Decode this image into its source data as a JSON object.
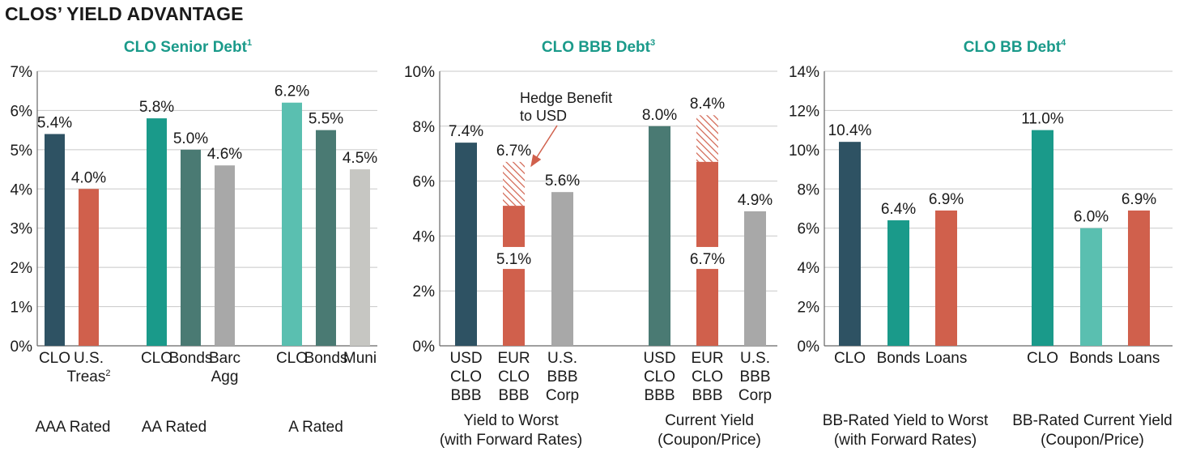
{
  "title": "CLOS’ YIELD ADVANTAGE",
  "colors": {
    "navy": "#2e5263",
    "teal": "#1a9a8a",
    "dark_teal": "#4a7a73",
    "light_teal": "#5abfb0",
    "gray": "#a8a8a8",
    "light_gray": "#c6c6c2",
    "red": "#d0604c",
    "grid": "#c8c8c8",
    "axis": "#666666"
  },
  "chart_data": [
    {
      "type": "bar",
      "title": "CLO Senior Debt",
      "title_sup": "1",
      "y_ticks": [
        "0%",
        "1%",
        "2%",
        "3%",
        "4%",
        "5%",
        "6%",
        "7%"
      ],
      "ylim": [
        0,
        7
      ],
      "bars": [
        {
          "name": "CLO",
          "lines": [
            "CLO"
          ],
          "value": 5.4,
          "label": "5.4%",
          "color": "navy"
        },
        {
          "name": "U.S. Treas",
          "lines": [
            "U.S.",
            "Treas"
          ],
          "sup": "2",
          "value": 4.0,
          "label": "4.0%",
          "color": "red"
        },
        {
          "name": "CLO",
          "lines": [
            "CLO"
          ],
          "value": 5.8,
          "label": "5.8%",
          "color": "teal"
        },
        {
          "name": "Bonds",
          "lines": [
            "Bonds"
          ],
          "value": 5.0,
          "label": "5.0%",
          "color": "dark_teal"
        },
        {
          "name": "Barc Agg",
          "lines": [
            "Barc",
            "Agg"
          ],
          "value": 4.6,
          "label": "4.6%",
          "color": "gray"
        },
        {
          "name": "CLO",
          "lines": [
            "CLO"
          ],
          "value": 6.2,
          "label": "6.2%",
          "color": "light_teal"
        },
        {
          "name": "Bonds",
          "lines": [
            "Bonds"
          ],
          "value": 5.5,
          "label": "5.5%",
          "color": "dark_teal"
        },
        {
          "name": "Muni",
          "lines": [
            "Muni"
          ],
          "value": 4.5,
          "label": "4.5%",
          "color": "light_gray"
        }
      ],
      "groups": [
        {
          "lines": [
            "AAA Rated"
          ]
        },
        {
          "lines": [
            "AA Rated"
          ]
        },
        {
          "lines": [
            "A Rated"
          ]
        }
      ]
    },
    {
      "type": "bar",
      "title": "CLO BBB Debt",
      "title_sup": "3",
      "y_ticks": [
        "0%",
        "2%",
        "4%",
        "6%",
        "8%",
        "10%"
      ],
      "ylim": [
        0,
        10
      ],
      "bars": [
        {
          "name": "USD CLO BBB",
          "lines": [
            "USD",
            "CLO",
            "BBB"
          ],
          "value": 7.4,
          "label": "7.4%",
          "color": "navy"
        },
        {
          "name": "EUR CLO BBB",
          "lines": [
            "EUR",
            "CLO",
            "BBB"
          ],
          "value": 5.1,
          "total": 6.7,
          "label": "6.7%",
          "inner_label": "5.1%",
          "color": "red",
          "hatched": true
        },
        {
          "name": "U.S. BBB Corp",
          "lines": [
            "U.S.",
            "BBB",
            "Corp"
          ],
          "value": 5.6,
          "label": "5.6%",
          "color": "gray"
        },
        {
          "name": "USD CLO BBB",
          "lines": [
            "USD",
            "CLO",
            "BBB"
          ],
          "value": 8.0,
          "label": "8.0%",
          "color": "dark_teal"
        },
        {
          "name": "EUR CLO BBB",
          "lines": [
            "EUR",
            "CLO",
            "BBB"
          ],
          "value": 6.7,
          "total": 8.4,
          "label": "8.4%",
          "inner_label": "6.7%",
          "color": "red",
          "hatched": true
        },
        {
          "name": "U.S. BBB Corp",
          "lines": [
            "U.S.",
            "BBB",
            "Corp"
          ],
          "value": 4.9,
          "label": "4.9%",
          "color": "gray"
        }
      ],
      "groups": [
        {
          "lines": [
            "Yield to Worst",
            "(with Forward Rates)"
          ]
        },
        {
          "lines": [
            "Current Yield",
            "(Coupon/Price)"
          ]
        }
      ],
      "annotation": {
        "lines": [
          "Hedge Benefit",
          "to USD"
        ]
      }
    },
    {
      "type": "bar",
      "title": "CLO BB Debt",
      "title_sup": "4",
      "y_ticks": [
        "0%",
        "2%",
        "4%",
        "6%",
        "8%",
        "10%",
        "12%",
        "14%"
      ],
      "ylim": [
        0,
        14
      ],
      "bars": [
        {
          "name": "CLO",
          "lines": [
            "CLO"
          ],
          "value": 10.4,
          "label": "10.4%",
          "color": "navy"
        },
        {
          "name": "Bonds",
          "lines": [
            "Bonds"
          ],
          "value": 6.4,
          "label": "6.4%",
          "color": "teal"
        },
        {
          "name": "Loans",
          "lines": [
            "Loans"
          ],
          "value": 6.9,
          "label": "6.9%",
          "color": "red"
        },
        {
          "name": "CLO",
          "lines": [
            "CLO"
          ],
          "value": 11.0,
          "label": "11.0%",
          "color": "teal"
        },
        {
          "name": "Bonds",
          "lines": [
            "Bonds"
          ],
          "value": 6.0,
          "label": "6.0%",
          "color": "light_teal"
        },
        {
          "name": "Loans",
          "lines": [
            "Loans"
          ],
          "value": 6.9,
          "label": "6.9%",
          "color": "red"
        }
      ],
      "groups": [
        {
          "lines": [
            "BB-Rated Yield to Worst",
            "(with Forward Rates)"
          ]
        },
        {
          "lines": [
            "BB-Rated Current Yield",
            "(Coupon/Price)"
          ]
        }
      ]
    }
  ]
}
